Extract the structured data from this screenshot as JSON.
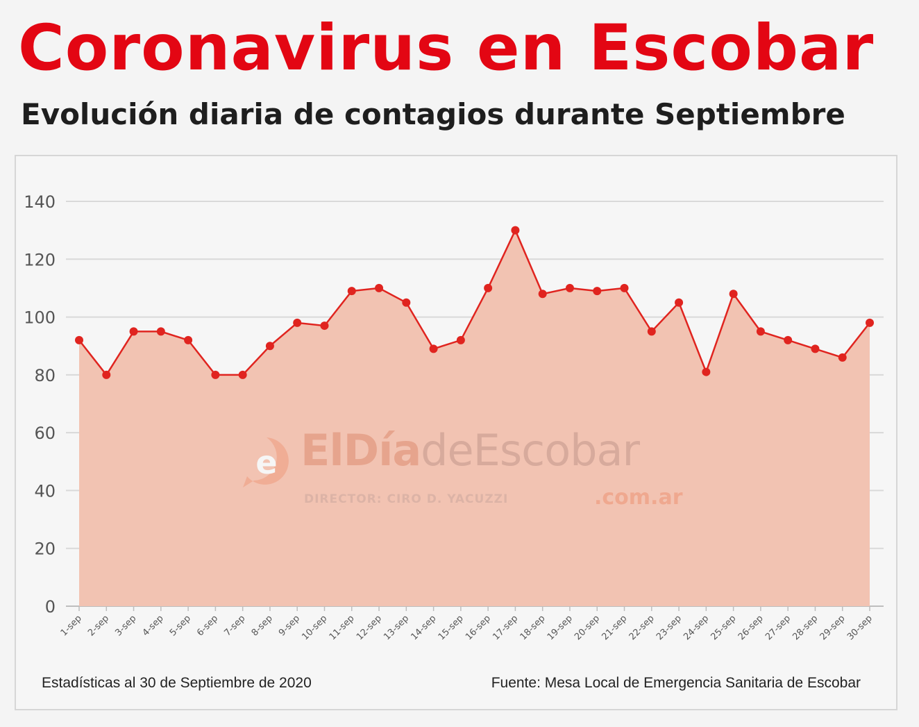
{
  "header": {
    "title": "Coronavirus en Escobar",
    "subtitle": "Evolución diaria de contagios durante Septiembre"
  },
  "footer": {
    "left": "Estadísticas al 30 de Septiembre de 2020",
    "right": "Fuente: Mesa Local de Emergencia Sanitaria de Escobar"
  },
  "watermark": {
    "brand_part1": "ElDía",
    "brand_part2": "deEscobar",
    "director": "DIRECTOR: CIRO D. YACUZZI",
    "domain": ".com.ar"
  },
  "colors": {
    "title": "#e30613",
    "line": "#e0241f",
    "area": "#f2c3b2",
    "grid": "#d9d9d9"
  },
  "chart_data": {
    "type": "area",
    "title": "",
    "xlabel": "",
    "ylabel": "",
    "ylim": [
      0,
      140
    ],
    "yticks": [
      0,
      20,
      40,
      60,
      80,
      100,
      120,
      140
    ],
    "grid": true,
    "categories": [
      "1-sep",
      "2-sep",
      "3-sep",
      "4-sep",
      "5-sep",
      "6-sep",
      "7-sep",
      "8-sep",
      "9-sep",
      "10-sep",
      "11-sep",
      "12-sep",
      "13-sep",
      "14-sep",
      "15-sep",
      "16-sep",
      "17-sep",
      "18-sep",
      "19-sep",
      "20-sep",
      "21-sep",
      "22-sep",
      "23-sep",
      "24-sep",
      "25-sep",
      "26-sep",
      "27-sep",
      "28-sep",
      "29-sep",
      "30-sep"
    ],
    "values": [
      92,
      80,
      95,
      95,
      92,
      80,
      80,
      90,
      98,
      97,
      109,
      110,
      105,
      89,
      92,
      110,
      130,
      108,
      110,
      109,
      110,
      95,
      105,
      81,
      108,
      95,
      92,
      89,
      86,
      98
    ]
  }
}
